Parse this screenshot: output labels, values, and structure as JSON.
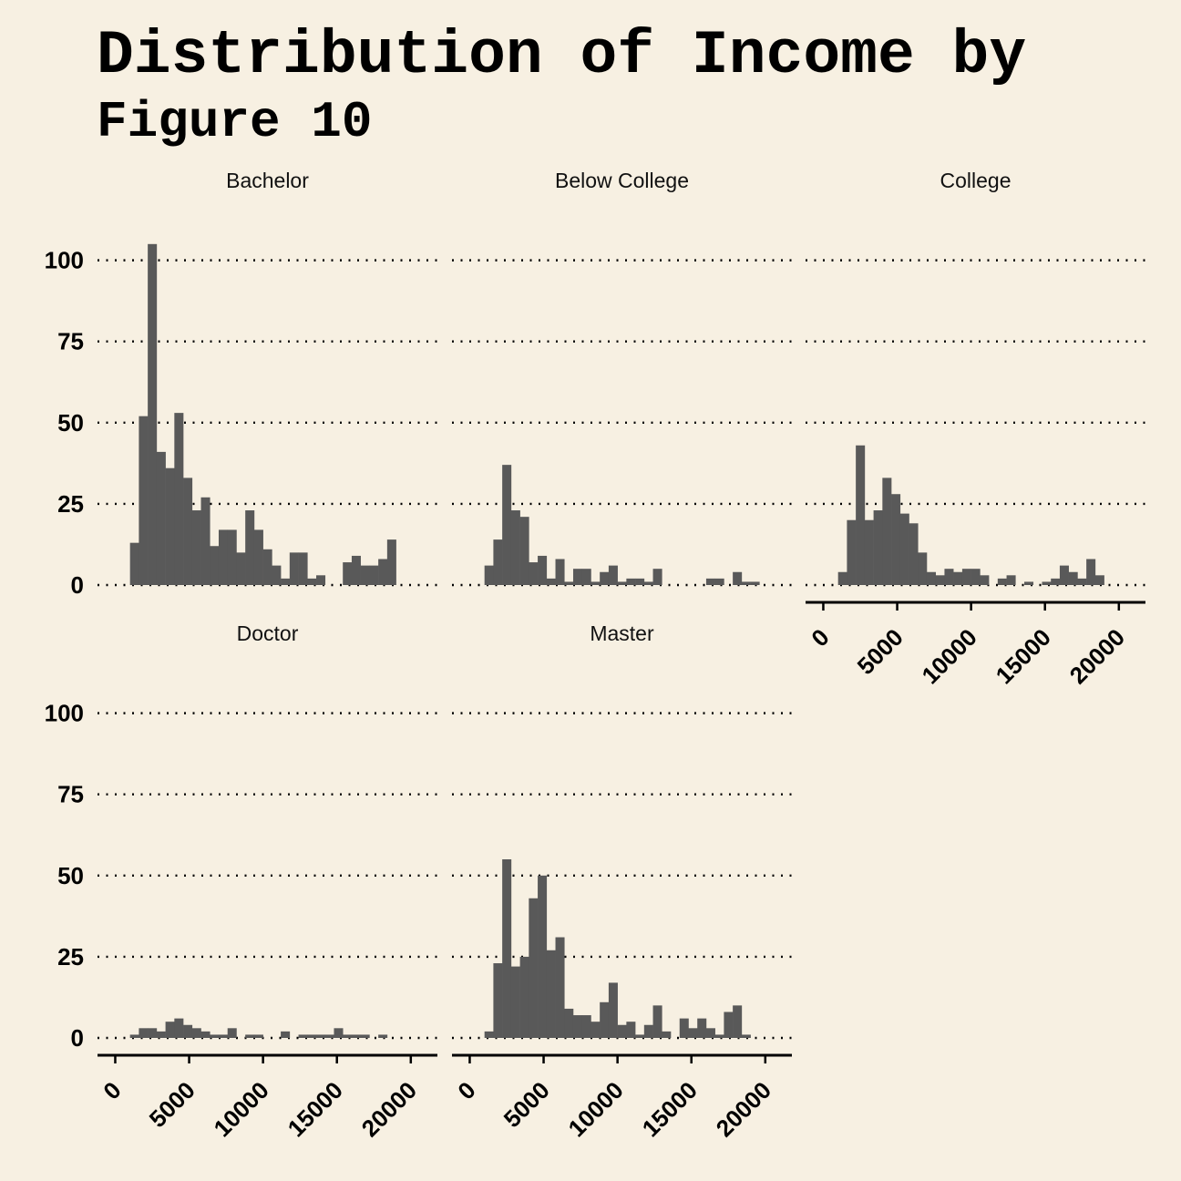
{
  "title": "Distribution of Income by",
  "subtitle": "Figure 10",
  "chart_data": {
    "type": "bar",
    "chart_kind": "faceted histogram",
    "bar_color": "#595959",
    "background": "#f7f0e2",
    "grid": "horizontal dotted",
    "ylim": [
      0,
      110
    ],
    "yticks": [
      0,
      25,
      50,
      75,
      100
    ],
    "xlim": [
      -1200,
      21800
    ],
    "xticks": [
      0,
      5000,
      10000,
      15000,
      20000
    ],
    "bin_width": 600,
    "bin_starts": [
      1000,
      1600,
      2200,
      2800,
      3400,
      4000,
      4600,
      5200,
      5800,
      6400,
      7000,
      7600,
      8200,
      8800,
      9400,
      10000,
      10600,
      11200,
      11800,
      12400,
      13000,
      13600,
      14200,
      14800,
      15400,
      16000,
      16600,
      17200,
      17800,
      18400,
      19000,
      19600
    ],
    "series": [
      {
        "name": "Bachelor",
        "values": [
          13,
          52,
          105,
          41,
          36,
          53,
          33,
          23,
          27,
          12,
          17,
          17,
          10,
          23,
          17,
          11,
          6,
          2,
          10,
          10,
          2,
          3,
          0,
          0,
          7,
          9,
          6,
          6,
          8,
          14,
          0,
          0
        ]
      },
      {
        "name": "Below College",
        "values": [
          6,
          14,
          37,
          23,
          21,
          7,
          9,
          2,
          8,
          1,
          5,
          5,
          1,
          4,
          6,
          1,
          2,
          2,
          1,
          5,
          0,
          0,
          0,
          0,
          0,
          2,
          2,
          0,
          4,
          1,
          1,
          0
        ]
      },
      {
        "name": "College",
        "values": [
          4,
          20,
          43,
          20,
          23,
          33,
          28,
          22,
          19,
          10,
          4,
          3,
          5,
          4,
          5,
          5,
          3,
          0,
          2,
          3,
          0,
          1,
          0,
          1,
          2,
          6,
          4,
          2,
          8,
          3,
          0,
          0
        ]
      },
      {
        "name": "Doctor",
        "values": [
          1,
          3,
          3,
          2,
          5,
          6,
          4,
          3,
          2,
          1,
          1,
          3,
          0,
          1,
          1,
          0,
          0,
          2,
          0,
          1,
          1,
          1,
          1,
          3,
          1,
          1,
          1,
          0,
          1,
          0,
          0,
          0
        ]
      },
      {
        "name": "Master",
        "values": [
          2,
          23,
          55,
          22,
          25,
          43,
          50,
          27,
          31,
          9,
          7,
          7,
          5,
          11,
          17,
          4,
          5,
          1,
          4,
          10,
          2,
          0,
          6,
          3,
          6,
          3,
          1,
          8,
          10,
          1,
          0,
          0
        ]
      }
    ]
  }
}
